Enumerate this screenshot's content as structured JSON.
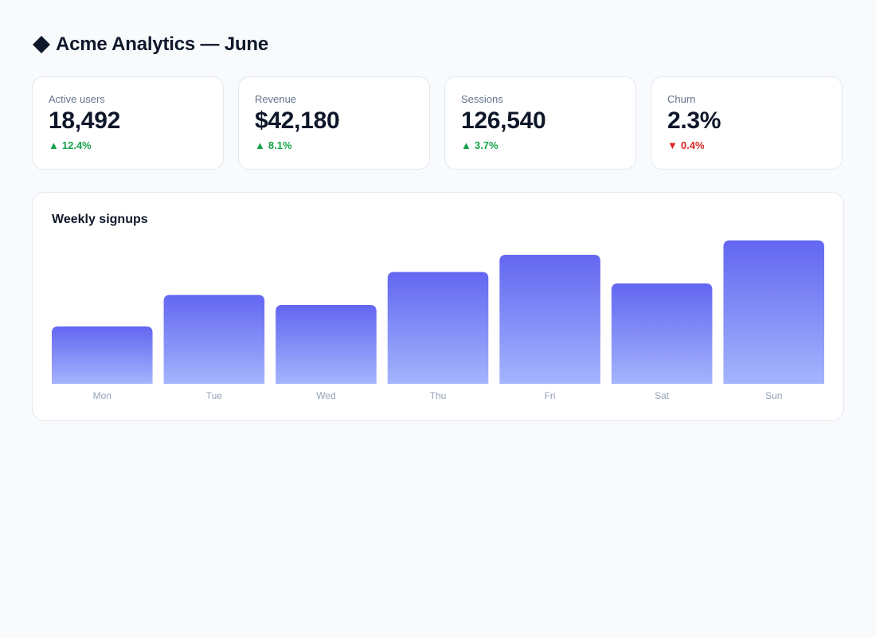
{
  "header": {
    "title": "Acme Analytics — June",
    "logo_icon": "diamond-icon"
  },
  "stats": [
    {
      "label": "Active users",
      "value": "18,492",
      "delta": "12.4%",
      "direction": "up"
    },
    {
      "label": "Revenue",
      "value": "$42,180",
      "delta": "8.1%",
      "direction": "up"
    },
    {
      "label": "Sessions",
      "value": "126,540",
      "delta": "3.7%",
      "direction": "up"
    },
    {
      "label": "Churn",
      "value": "2.3%",
      "delta": "0.4%",
      "direction": "down"
    }
  ],
  "colors": {
    "up": "#16a34a",
    "down": "#dc2626",
    "bar_top": "#6366f1",
    "bar_bottom": "#a5b4fc"
  },
  "chart_data": {
    "type": "bar",
    "title": "Weekly signups",
    "categories": [
      "Mon",
      "Tue",
      "Wed",
      "Thu",
      "Fri",
      "Sat",
      "Sun"
    ],
    "values": [
      40,
      62,
      55,
      78,
      90,
      70,
      100
    ],
    "ylim": [
      0,
      100
    ],
    "grid": false,
    "legend": "none"
  }
}
